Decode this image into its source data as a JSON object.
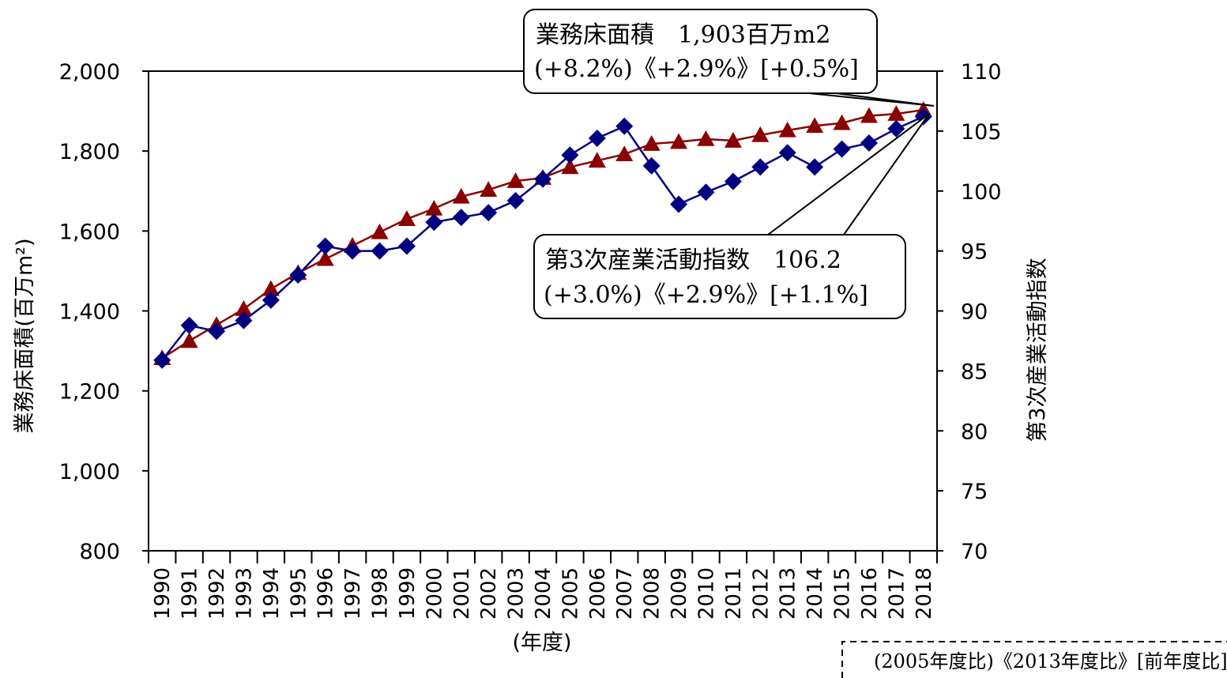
{
  "chart_data": {
    "type": "line",
    "x": [
      1990,
      1991,
      1992,
      1993,
      1994,
      1995,
      1996,
      1997,
      1998,
      1999,
      2000,
      2001,
      2002,
      2003,
      2004,
      2005,
      2006,
      2007,
      2008,
      2009,
      2010,
      2011,
      2012,
      2013,
      2014,
      2015,
      2016,
      2017,
      2018
    ],
    "xlabel": "(年度)",
    "ylabel": "業務床面積(百万m²)",
    "ylim": [
      800,
      2000
    ],
    "yticks": [
      800,
      1000,
      1200,
      1400,
      1600,
      1800,
      2000
    ],
    "ytick_labels": [
      "800",
      "1,000",
      "1,200",
      "1,400",
      "1,600",
      "1,800",
      "2,000"
    ],
    "y2label": "第3次産業活動指数",
    "y2lim": [
      70,
      110
    ],
    "y2ticks": [
      70,
      75,
      80,
      85,
      90,
      95,
      100,
      105,
      110
    ],
    "grid": false,
    "series": [
      {
        "axis": "left",
        "color": "#8B0000",
        "marker": "triangle",
        "values": [
          1282,
          1325,
          1365,
          1405,
          1455,
          1495,
          1530,
          1563,
          1597,
          1630,
          1656,
          1686,
          1703,
          1725,
          1733,
          1760,
          1776,
          1792,
          1818,
          1823,
          1830,
          1826,
          1840,
          1852,
          1863,
          1870,
          1888,
          1893,
          1903
        ]
      },
      {
        "axis": "right",
        "color": "#000080",
        "marker": "diamond",
        "values": [
          85.9,
          88.8,
          88.3,
          89.2,
          90.9,
          93.0,
          95.4,
          95.0,
          95.0,
          95.4,
          97.4,
          97.8,
          98.2,
          99.2,
          101.0,
          103.0,
          104.4,
          105.4,
          102.1,
          98.9,
          99.9,
          100.8,
          102.0,
          103.2,
          102.0,
          103.5,
          104.0,
          105.2,
          106.2
        ]
      }
    ],
    "annotations": [
      {
        "line1": "業務床面積　1,903百万m2",
        "line2": "(+8.2%)《+2.9%》[+0.5%]"
      },
      {
        "line1": "第3次産業活動指数　106.2",
        "line2": "(+3.0%)《+2.9%》[+1.1%]"
      }
    ],
    "legend_note": "(2005年度比)《2013年度比》[前年度比]"
  }
}
